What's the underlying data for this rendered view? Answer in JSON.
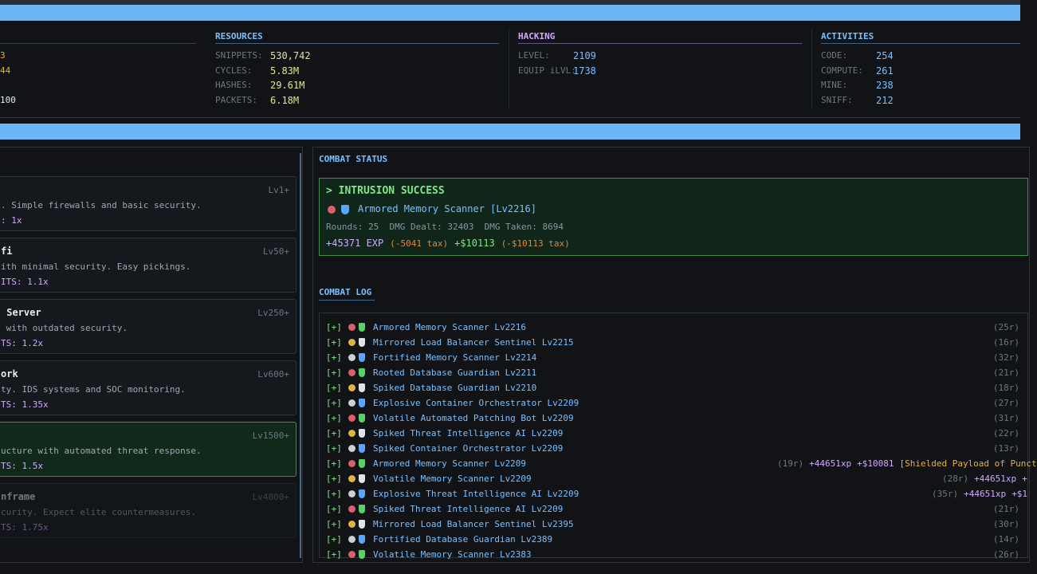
{
  "stats": {
    "partial": {
      "values": [
        "3",
        "44",
        "100"
      ]
    },
    "resources": {
      "title": "RESOURCES",
      "rows": [
        {
          "label": "SNIPPETS:",
          "value": "530,742"
        },
        {
          "label": "CYCLES:",
          "value": "5.83M"
        },
        {
          "label": "HASHES:",
          "value": "29.61M"
        },
        {
          "label": "PACKETS:",
          "value": "6.18M"
        }
      ]
    },
    "hacking": {
      "title": "HACKING",
      "rows": [
        {
          "label": "LEVEL:",
          "value": "2109"
        },
        {
          "label": "EQUIP iLVL:",
          "value": "1738"
        }
      ]
    },
    "activities": {
      "title": "ACTIVITIES",
      "rows": [
        {
          "label": "CODE:",
          "value": "254"
        },
        {
          "label": "COMPUTE:",
          "value": "261"
        },
        {
          "label": "MINE:",
          "value": "238"
        },
        {
          "label": "SNIFF:",
          "value": "212"
        }
      ]
    }
  },
  "zones": [
    {
      "level": "Lv1+",
      "description": ". Simple firewalls and basic security.",
      "multiplier": ": 1x"
    },
    {
      "title": "fi",
      "level": "Lv50+",
      "description": "ith minimal security. Easy pickings.",
      "multiplier": "ITS: 1.1x"
    },
    {
      "title": " Server",
      "level": "Lv250+",
      "description": " with outdated security.",
      "multiplier": "TS: 1.2x"
    },
    {
      "title": "ork",
      "level": "Lv600+",
      "description": "ty. IDS systems and SOC monitoring.",
      "multiplier": "TS: 1.35x"
    },
    {
      "level": "Lv1500+",
      "description": "ucture with automated threat response.",
      "multiplier": "TS: 1.5x"
    },
    {
      "title": "nframe",
      "level": "Lv4000+",
      "description": "curity. Expect elite countermeasures.",
      "multiplier": "TS: 1.75x"
    }
  ],
  "status": {
    "title": "COMBAT STATUS",
    "result": "> INTRUSION SUCCESS",
    "enemy": "Armored Memory Scanner [Lv2216]",
    "details": "Rounds: 25  DMG Dealt: 32403  DMG Taken: 8694",
    "exp": "+45371 EXP",
    "exp_tax": "(-5041 tax)",
    "money": "+$10113",
    "money_tax": "(-$10113 tax)"
  },
  "log": {
    "title": "COMBAT LOG",
    "marker": "[+]",
    "rows": [
      {
        "name": "Armored Memory Scanner Lv2216",
        "rounds": "(25r)"
      },
      {
        "name": "Mirrored Load Balancer Sentinel Lv2215",
        "rounds": "(16r)"
      },
      {
        "name": "Fortified Memory Scanner Lv2214",
        "rounds": "(32r)"
      },
      {
        "name": "Rooted Database Guardian Lv2211",
        "rounds": "(21r)"
      },
      {
        "name": "Spiked Database Guardian Lv2210",
        "rounds": "(18r)"
      },
      {
        "name": "Explosive Container Orchestrator Lv2209",
        "rounds": "(27r)"
      },
      {
        "name": "Volatile Automated Patching Bot Lv2209",
        "rounds": "(31r)"
      },
      {
        "name": "Spiked Threat Intelligence AI Lv2209",
        "rounds": "(22r)"
      },
      {
        "name": "Spiked Container Orchestrator Lv2209",
        "rounds": "(13r)"
      },
      {
        "name": "Armored Memory Scanner Lv2209",
        "rounds": "(19r)",
        "xp": "+44651xp",
        "money": "+$10081",
        "loot": "[Shielded Payload of Punct"
      },
      {
        "name": "Volatile Memory Scanner Lv2209",
        "rounds": "(28r)",
        "xp": "+44651xp",
        "money": "+"
      },
      {
        "name": "Explosive Threat Intelligence AI Lv2209",
        "rounds": "(35r)",
        "xp": "+44651xp",
        "money": "+$1"
      },
      {
        "name": "Spiked Threat Intelligence AI Lv2209",
        "rounds": "(21r)"
      },
      {
        "name": "Mirrored Load Balancer Sentinel Lv2395",
        "rounds": "(30r)"
      },
      {
        "name": "Fortified Database Guardian Lv2389",
        "rounds": "(14r)"
      },
      {
        "name": "Volatile Memory Scanner Lv2383",
        "rounds": "(26r)"
      }
    ]
  }
}
